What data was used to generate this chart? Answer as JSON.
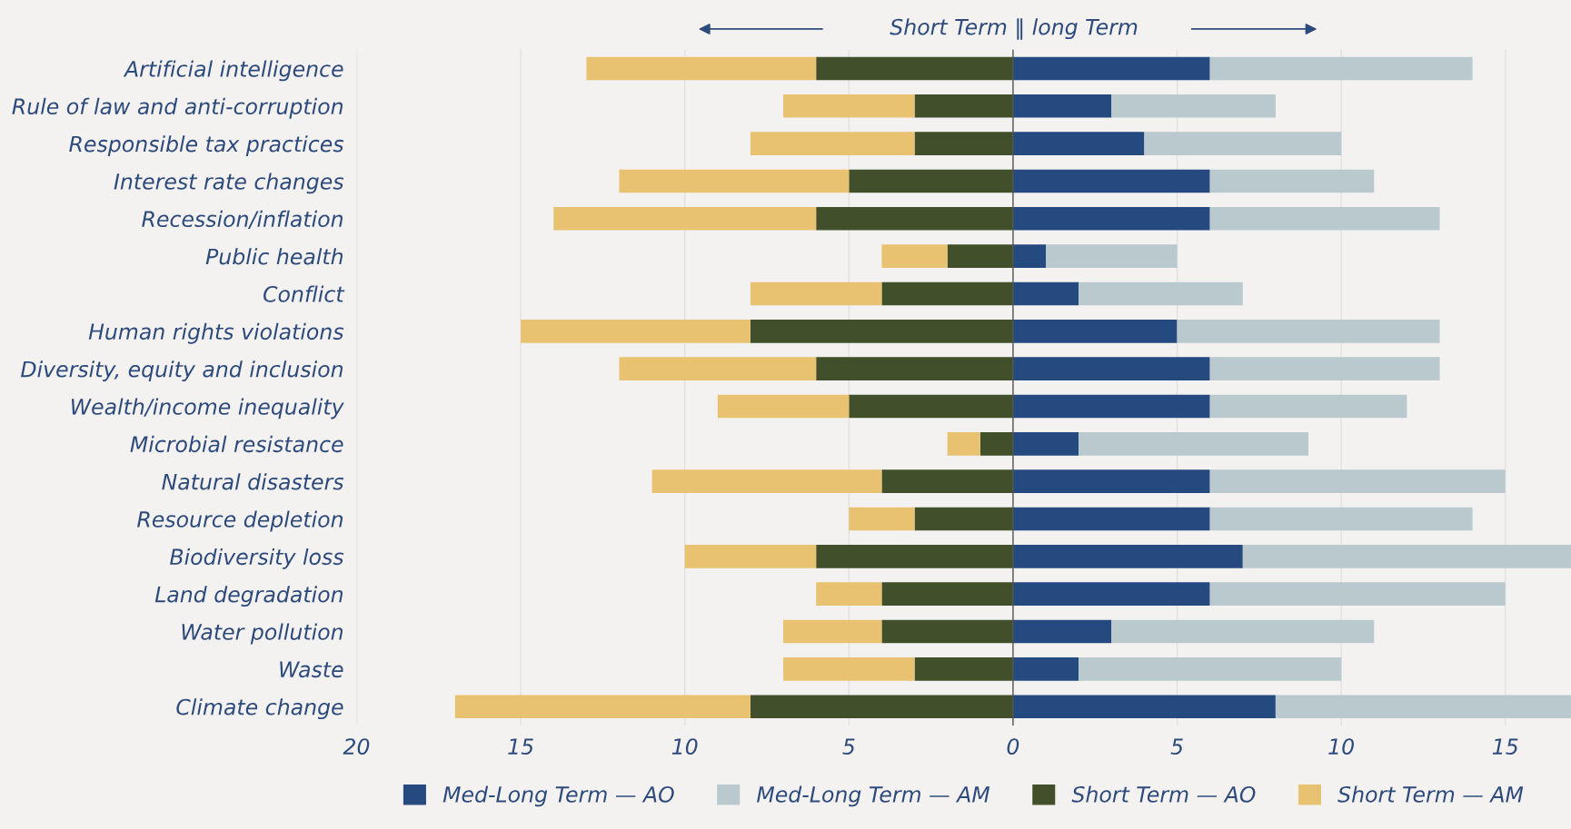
{
  "chart_data": {
    "type": "bar",
    "orientation": "horizontal",
    "stacked": true,
    "annotations": [
      "Short Term ‖ long Term"
    ],
    "categories": [
      "Artificial intelligence",
      "Rule of law and anti-corruption",
      "Responsible tax practices",
      "Interest rate changes",
      "Recession/inflation",
      "Public health",
      "Conflict",
      "Human rights violations",
      "Diversity, equity and inclusion",
      "Wealth/income inequality",
      "Microbial resistance",
      "Natural disasters",
      "Resource depletion",
      "Biodiversity loss",
      "Land degradation",
      "Water pollution",
      "Waste",
      "Climate change"
    ],
    "series": [
      {
        "name": "Med-Long Term — AO",
        "color": "#254a7f",
        "values": [
          6,
          3,
          4,
          6,
          6,
          1,
          2,
          5,
          6,
          6,
          2,
          6,
          6,
          7,
          6,
          3,
          2,
          8
        ]
      },
      {
        "name": "Med-Long Term — AM",
        "color": "#b9c9cd",
        "values": [
          8,
          5,
          6,
          5,
          7,
          4,
          5,
          8,
          7,
          6,
          7,
          9,
          8,
          10,
          9,
          8,
          8,
          9
        ]
      },
      {
        "name": "Short Term — AO",
        "color": "#414f2a",
        "values": [
          -6,
          -3,
          -3,
          -5,
          -6,
          -2,
          -4,
          -8,
          -6,
          -5,
          -1,
          -4,
          -3,
          -6,
          -4,
          -4,
          -3,
          -8
        ]
      },
      {
        "name": "Short Term — AM",
        "color": "#e9c271",
        "values": [
          -7,
          -4,
          -5,
          -7,
          -8,
          -2,
          -4,
          -7,
          -6,
          -4,
          -1,
          -7,
          -2,
          -4,
          -2,
          -3,
          -4,
          -9
        ]
      }
    ],
    "xlim": [
      -20,
      17
    ],
    "xticks": [
      {
        "value": -20,
        "label": "20"
      },
      {
        "value": -15,
        "label": "15"
      },
      {
        "value": -10,
        "label": "10"
      },
      {
        "value": -5,
        "label": "5"
      },
      0,
      5,
      10,
      15
    ],
    "grid": "x",
    "legend": "bottom"
  }
}
